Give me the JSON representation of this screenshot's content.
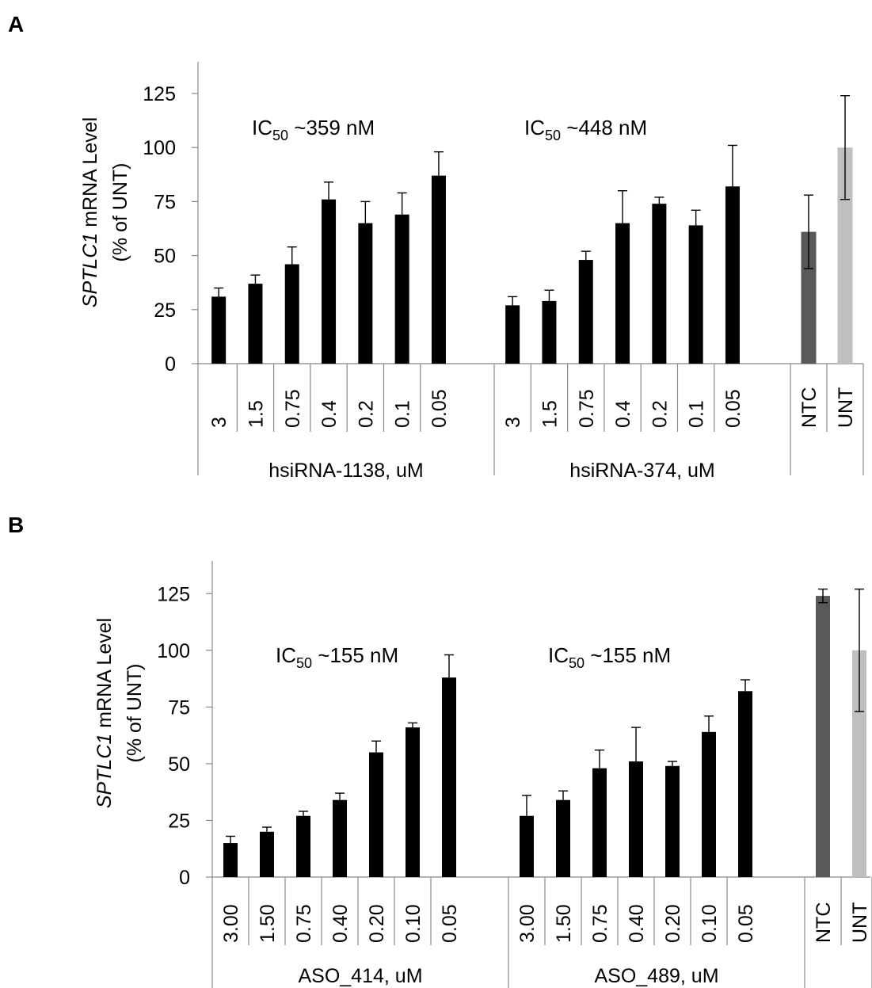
{
  "chart_data": [
    {
      "panel": "A",
      "type": "bar",
      "ylabel_italic": "SPTLC1",
      "ylabel_rest": " mRNA Level",
      "ylabel_line2": "(% of UNT)",
      "ylim": [
        0,
        140
      ],
      "yticks": [
        0,
        25,
        50,
        75,
        100,
        125
      ],
      "groups": [
        {
          "label": "hsiRNA-1138, uM",
          "annotation": {
            "main": "IC",
            "sub": "50",
            "rest": " ~359 nM"
          },
          "categories": [
            "3",
            "1.5",
            "0.75",
            "0.4",
            "0.2",
            "0.1",
            "0.05"
          ],
          "values": [
            31,
            37,
            46,
            76,
            65,
            69,
            87
          ],
          "errors": [
            4,
            4,
            8,
            8,
            10,
            10,
            11
          ],
          "color": "#000000"
        },
        {
          "label": "hsiRNA-374, uM",
          "annotation": {
            "main": "IC",
            "sub": "50",
            "rest": " ~448 nM"
          },
          "categories": [
            "3",
            "1.5",
            "0.75",
            "0.4",
            "0.2",
            "0.1",
            "0.05"
          ],
          "values": [
            27,
            29,
            48,
            65,
            74,
            64,
            82
          ],
          "errors": [
            4,
            5,
            4,
            15,
            3,
            7,
            19
          ],
          "color": "#000000"
        },
        {
          "label": "",
          "categories": [
            "NTC",
            "UNT"
          ],
          "values": [
            61,
            100
          ],
          "errors": [
            17,
            24
          ],
          "colors": [
            "#595959",
            "#bfbfbf"
          ]
        }
      ]
    },
    {
      "panel": "B",
      "type": "bar",
      "ylabel_italic": "SPTLC1",
      "ylabel_rest": " mRNA Level",
      "ylabel_line2": "(% of UNT)",
      "ylim": [
        0,
        140
      ],
      "yticks": [
        0,
        25,
        50,
        75,
        100,
        125
      ],
      "groups": [
        {
          "label": "ASO_414, uM",
          "annotation": {
            "main": "IC",
            "sub": "50",
            "rest": " ~155 nM"
          },
          "categories": [
            "3.00",
            "1.50",
            "0.75",
            "0.40",
            "0.20",
            "0.10",
            "0.05"
          ],
          "values": [
            15,
            20,
            27,
            34,
            55,
            66,
            88
          ],
          "errors": [
            3,
            2,
            2,
            3,
            5,
            2,
            10
          ],
          "color": "#000000"
        },
        {
          "label": "ASO_489, uM",
          "annotation": {
            "main": "IC",
            "sub": "50",
            "rest": " ~155 nM"
          },
          "categories": [
            "3.00",
            "1.50",
            "0.75",
            "0.40",
            "0.20",
            "0.10",
            "0.05"
          ],
          "values": [
            27,
            34,
            48,
            51,
            49,
            64,
            82
          ],
          "errors": [
            9,
            4,
            8,
            15,
            2,
            7,
            5
          ],
          "color": "#000000"
        },
        {
          "label": "",
          "categories": [
            "NTC",
            "UNT"
          ],
          "values": [
            124,
            100
          ],
          "errors": [
            3,
            27
          ],
          "colors": [
            "#595959",
            "#bfbfbf"
          ]
        }
      ]
    }
  ]
}
